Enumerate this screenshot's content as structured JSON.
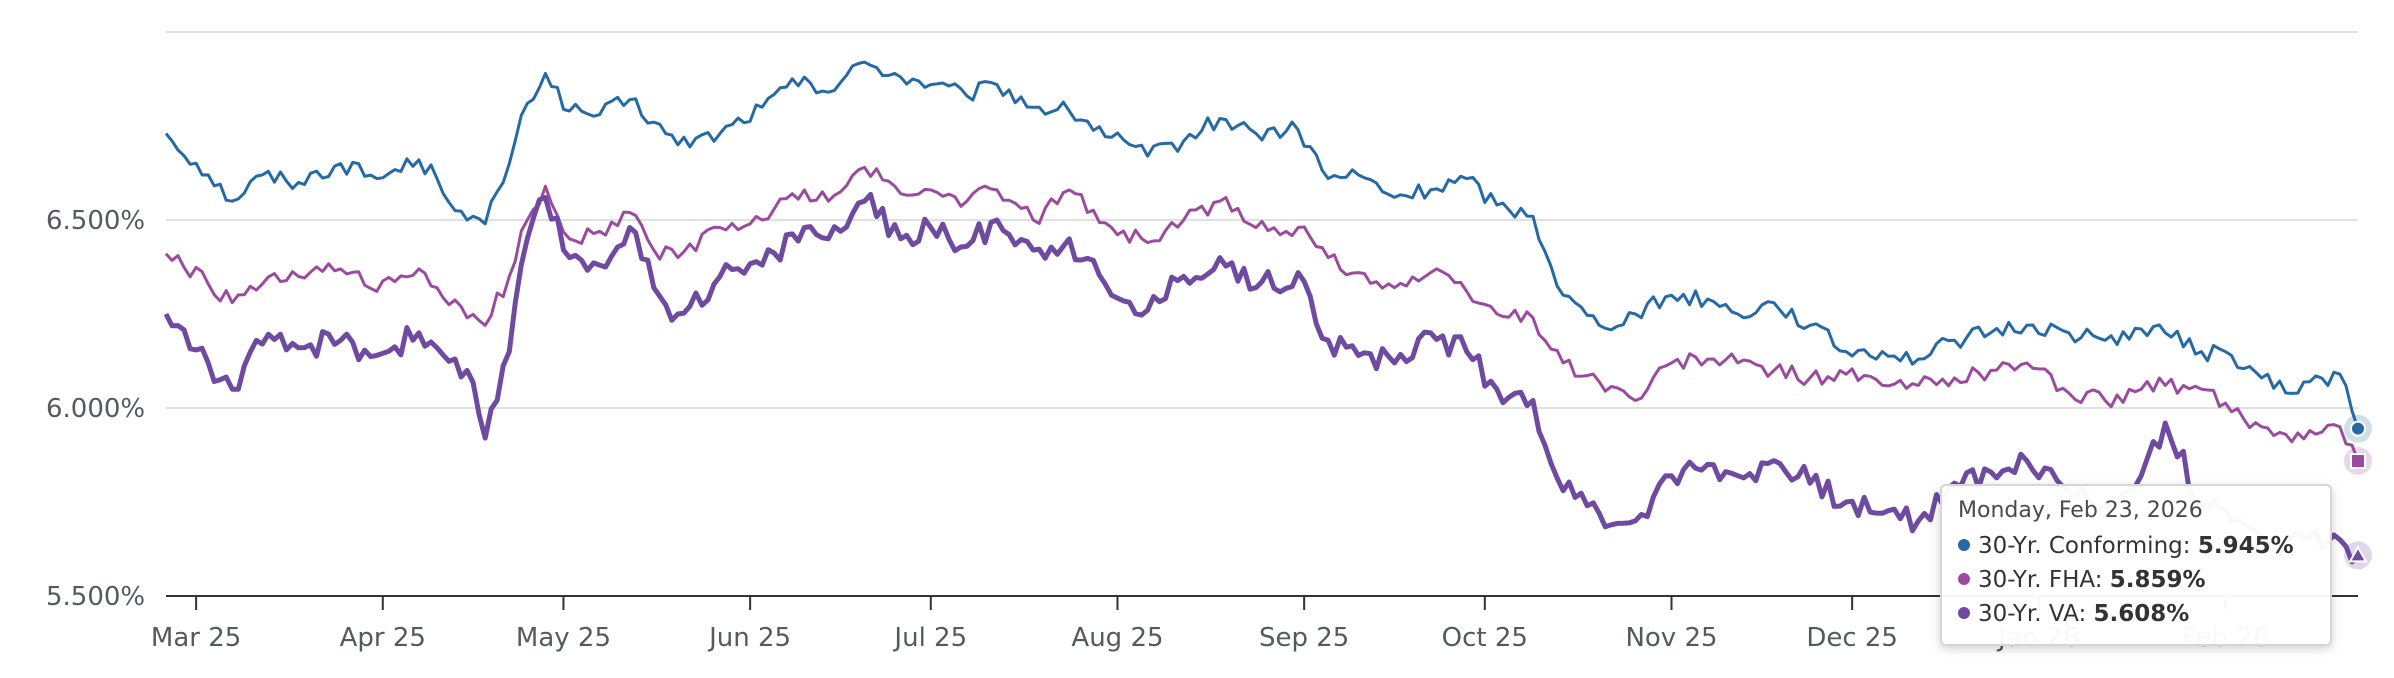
{
  "chart_data": {
    "type": "line",
    "title": "",
    "xlabel": "",
    "ylabel": "",
    "y_ticks": [
      "5.500%",
      "6.000%",
      "6.500%"
    ],
    "y_tick_values": [
      5.5,
      6.0,
      6.5
    ],
    "ylim": [
      5.5,
      7.0
    ],
    "x_ticks": [
      "Mar 25",
      "Apr 25",
      "May 25",
      "Jun 25",
      "Jul 25",
      "Aug 25",
      "Sep 25",
      "Oct 25",
      "Nov 25",
      "Dec 25",
      "Jan 26",
      "Feb 26"
    ],
    "x_tick_dates": [
      "2025-03-01",
      "2025-04-01",
      "2025-05-01",
      "2025-06-01",
      "2025-07-01",
      "2025-08-01",
      "2025-09-01",
      "2025-10-01",
      "2025-11-01",
      "2025-12-01",
      "2026-01-01",
      "2026-02-01"
    ],
    "xlim": [
      "2025-02-24",
      "2026-02-23"
    ],
    "grid": true,
    "series": [
      {
        "name": "30-Yr. Conforming",
        "color": "#2569a5",
        "points": [
          [
            "2025-02-24",
            6.73
          ],
          [
            "2025-03-03",
            6.62
          ],
          [
            "2025-03-07",
            6.55
          ],
          [
            "2025-03-12",
            6.62
          ],
          [
            "2025-03-18",
            6.6
          ],
          [
            "2025-03-25",
            6.65
          ],
          [
            "2025-03-31",
            6.61
          ],
          [
            "2025-04-07",
            6.66
          ],
          [
            "2025-04-10",
            6.61
          ],
          [
            "2025-04-15",
            6.5
          ],
          [
            "2025-04-18",
            6.49
          ],
          [
            "2025-04-22",
            6.65
          ],
          [
            "2025-04-25",
            6.81
          ],
          [
            "2025-04-28",
            6.89
          ],
          [
            "2025-05-02",
            6.79
          ],
          [
            "2025-05-07",
            6.78
          ],
          [
            "2025-05-12",
            6.82
          ],
          [
            "2025-05-16",
            6.76
          ],
          [
            "2025-05-20",
            6.7
          ],
          [
            "2025-05-27",
            6.73
          ],
          [
            "2025-06-03",
            6.8
          ],
          [
            "2025-06-10",
            6.88
          ],
          [
            "2025-06-14",
            6.84
          ],
          [
            "2025-06-20",
            6.92
          ],
          [
            "2025-06-26",
            6.88
          ],
          [
            "2025-07-01",
            6.86
          ],
          [
            "2025-07-07",
            6.83
          ],
          [
            "2025-07-12",
            6.86
          ],
          [
            "2025-07-18",
            6.8
          ],
          [
            "2025-07-24",
            6.79
          ],
          [
            "2025-07-31",
            6.72
          ],
          [
            "2025-08-06",
            6.67
          ],
          [
            "2025-08-12",
            6.71
          ],
          [
            "2025-08-18",
            6.77
          ],
          [
            "2025-08-24",
            6.73
          ],
          [
            "2025-08-31",
            6.74
          ],
          [
            "2025-09-05",
            6.61
          ],
          [
            "2025-09-10",
            6.62
          ],
          [
            "2025-09-16",
            6.56
          ],
          [
            "2025-09-22",
            6.58
          ],
          [
            "2025-09-28",
            6.61
          ],
          [
            "2025-10-03",
            6.54
          ],
          [
            "2025-10-09",
            6.51
          ],
          [
            "2025-10-14",
            6.3
          ],
          [
            "2025-10-20",
            6.22
          ],
          [
            "2025-10-26",
            6.25
          ],
          [
            "2025-11-01",
            6.3
          ],
          [
            "2025-11-07",
            6.29
          ],
          [
            "2025-11-12",
            6.25
          ],
          [
            "2025-11-18",
            6.28
          ],
          [
            "2025-11-24",
            6.22
          ],
          [
            "2025-11-30",
            6.15
          ],
          [
            "2025-12-06",
            6.15
          ],
          [
            "2025-12-12",
            6.13
          ],
          [
            "2025-12-18",
            6.18
          ],
          [
            "2025-12-24",
            6.2
          ],
          [
            "2025-12-30",
            6.22
          ],
          [
            "2026-01-06",
            6.2
          ],
          [
            "2026-01-12",
            6.18
          ],
          [
            "2026-01-18",
            6.21
          ],
          [
            "2026-01-22",
            6.2
          ],
          [
            "2026-01-28",
            6.15
          ],
          [
            "2026-02-02",
            6.14
          ],
          [
            "2026-02-07",
            6.08
          ],
          [
            "2026-02-11",
            6.04
          ],
          [
            "2026-02-15",
            6.07
          ],
          [
            "2026-02-20",
            6.09
          ],
          [
            "2026-02-23",
            5.945
          ]
        ]
      },
      {
        "name": "30-Yr. FHA",
        "color": "#9b4b9f",
        "points": [
          [
            "2025-02-24",
            6.41
          ],
          [
            "2025-03-03",
            6.33
          ],
          [
            "2025-03-07",
            6.28
          ],
          [
            "2025-03-12",
            6.33
          ],
          [
            "2025-03-18",
            6.35
          ],
          [
            "2025-03-25",
            6.37
          ],
          [
            "2025-03-31",
            6.31
          ],
          [
            "2025-04-07",
            6.37
          ],
          [
            "2025-04-10",
            6.32
          ],
          [
            "2025-04-15",
            6.24
          ],
          [
            "2025-04-18",
            6.22
          ],
          [
            "2025-04-22",
            6.35
          ],
          [
            "2025-04-25",
            6.5
          ],
          [
            "2025-04-28",
            6.59
          ],
          [
            "2025-05-02",
            6.45
          ],
          [
            "2025-05-07",
            6.47
          ],
          [
            "2025-05-12",
            6.52
          ],
          [
            "2025-05-16",
            6.42
          ],
          [
            "2025-05-20",
            6.4
          ],
          [
            "2025-05-27",
            6.48
          ],
          [
            "2025-06-03",
            6.5
          ],
          [
            "2025-06-10",
            6.58
          ],
          [
            "2025-06-14",
            6.55
          ],
          [
            "2025-06-20",
            6.64
          ],
          [
            "2025-06-26",
            6.57
          ],
          [
            "2025-07-01",
            6.58
          ],
          [
            "2025-07-07",
            6.55
          ],
          [
            "2025-07-12",
            6.58
          ],
          [
            "2025-07-18",
            6.5
          ],
          [
            "2025-07-24",
            6.58
          ],
          [
            "2025-07-31",
            6.48
          ],
          [
            "2025-08-06",
            6.44
          ],
          [
            "2025-08-12",
            6.5
          ],
          [
            "2025-08-18",
            6.55
          ],
          [
            "2025-08-24",
            6.48
          ],
          [
            "2025-08-31",
            6.48
          ],
          [
            "2025-09-05",
            6.4
          ],
          [
            "2025-09-10",
            6.36
          ],
          [
            "2025-09-16",
            6.32
          ],
          [
            "2025-09-22",
            6.36
          ],
          [
            "2025-09-28",
            6.31
          ],
          [
            "2025-10-03",
            6.25
          ],
          [
            "2025-10-09",
            6.24
          ],
          [
            "2025-10-14",
            6.12
          ],
          [
            "2025-10-20",
            6.07
          ],
          [
            "2025-10-26",
            6.02
          ],
          [
            "2025-11-01",
            6.12
          ],
          [
            "2025-11-07",
            6.13
          ],
          [
            "2025-11-12",
            6.12
          ],
          [
            "2025-11-18",
            6.1
          ],
          [
            "2025-11-24",
            6.08
          ],
          [
            "2025-11-30",
            6.09
          ],
          [
            "2025-12-06",
            6.06
          ],
          [
            "2025-12-12",
            6.06
          ],
          [
            "2025-12-18",
            6.08
          ],
          [
            "2025-12-24",
            6.1
          ],
          [
            "2025-12-30",
            6.12
          ],
          [
            "2026-01-06",
            6.04
          ],
          [
            "2026-01-12",
            6.02
          ],
          [
            "2026-01-18",
            6.05
          ],
          [
            "2026-01-22",
            6.06
          ],
          [
            "2026-01-28",
            6.05
          ],
          [
            "2026-02-02",
            5.99
          ],
          [
            "2026-02-07",
            5.95
          ],
          [
            "2026-02-11",
            5.93
          ],
          [
            "2026-02-15",
            5.94
          ],
          [
            "2026-02-20",
            5.95
          ],
          [
            "2026-02-23",
            5.859
          ]
        ]
      },
      {
        "name": "30-Yr. VA",
        "color": "#6e4ba0",
        "points": [
          [
            "2025-02-24",
            6.25
          ],
          [
            "2025-03-03",
            6.12
          ],
          [
            "2025-03-07",
            6.05
          ],
          [
            "2025-03-12",
            6.17
          ],
          [
            "2025-03-18",
            6.16
          ],
          [
            "2025-03-25",
            6.18
          ],
          [
            "2025-03-31",
            6.14
          ],
          [
            "2025-04-07",
            6.2
          ],
          [
            "2025-04-10",
            6.16
          ],
          [
            "2025-04-15",
            6.1
          ],
          [
            "2025-04-18",
            5.92
          ],
          [
            "2025-04-22",
            6.15
          ],
          [
            "2025-04-25",
            6.45
          ],
          [
            "2025-04-28",
            6.56
          ],
          [
            "2025-05-02",
            6.4
          ],
          [
            "2025-05-07",
            6.38
          ],
          [
            "2025-05-12",
            6.48
          ],
          [
            "2025-05-16",
            6.32
          ],
          [
            "2025-05-20",
            6.25
          ],
          [
            "2025-05-27",
            6.35
          ],
          [
            "2025-06-03",
            6.38
          ],
          [
            "2025-06-10",
            6.48
          ],
          [
            "2025-06-14",
            6.45
          ],
          [
            "2025-06-20",
            6.55
          ],
          [
            "2025-06-26",
            6.45
          ],
          [
            "2025-07-01",
            6.48
          ],
          [
            "2025-07-07",
            6.43
          ],
          [
            "2025-07-12",
            6.5
          ],
          [
            "2025-07-18",
            6.42
          ],
          [
            "2025-07-24",
            6.45
          ],
          [
            "2025-07-31",
            6.3
          ],
          [
            "2025-08-06",
            6.26
          ],
          [
            "2025-08-12",
            6.35
          ],
          [
            "2025-08-18",
            6.4
          ],
          [
            "2025-08-24",
            6.32
          ],
          [
            "2025-08-31",
            6.36
          ],
          [
            "2025-09-05",
            6.18
          ],
          [
            "2025-09-10",
            6.14
          ],
          [
            "2025-09-16",
            6.12
          ],
          [
            "2025-09-22",
            6.2
          ],
          [
            "2025-09-28",
            6.15
          ],
          [
            "2025-10-03",
            6.05
          ],
          [
            "2025-10-09",
            6.02
          ],
          [
            "2025-10-14",
            5.78
          ],
          [
            "2025-10-20",
            5.72
          ],
          [
            "2025-10-26",
            5.7
          ],
          [
            "2025-11-01",
            5.82
          ],
          [
            "2025-11-07",
            5.85
          ],
          [
            "2025-11-12",
            5.82
          ],
          [
            "2025-11-18",
            5.86
          ],
          [
            "2025-11-24",
            5.8
          ],
          [
            "2025-11-30",
            5.75
          ],
          [
            "2025-12-06",
            5.72
          ],
          [
            "2025-12-12",
            5.7
          ],
          [
            "2025-12-18",
            5.8
          ],
          [
            "2025-12-24",
            5.83
          ],
          [
            "2025-12-30",
            5.86
          ],
          [
            "2026-01-06",
            5.78
          ],
          [
            "2026-01-12",
            5.74
          ],
          [
            "2026-01-18",
            5.82
          ],
          [
            "2026-01-22",
            5.96
          ],
          [
            "2026-01-28",
            5.74
          ],
          [
            "2026-02-02",
            5.7
          ],
          [
            "2026-02-07",
            5.66
          ],
          [
            "2026-02-11",
            5.64
          ],
          [
            "2026-02-15",
            5.66
          ],
          [
            "2026-02-20",
            5.65
          ],
          [
            "2026-02-23",
            5.608
          ]
        ]
      }
    ],
    "tooltip": {
      "date": "Monday, Feb 23, 2026",
      "rows": [
        {
          "label": "30-Yr. Conforming:",
          "value": "5.945%",
          "color": "#2569a5"
        },
        {
          "label": "30-Yr. FHA:",
          "value": "5.859%",
          "color": "#9b4b9f"
        },
        {
          "label": "30-Yr. VA:",
          "value": "5.608%",
          "color": "#6e4ba0"
        }
      ]
    }
  }
}
